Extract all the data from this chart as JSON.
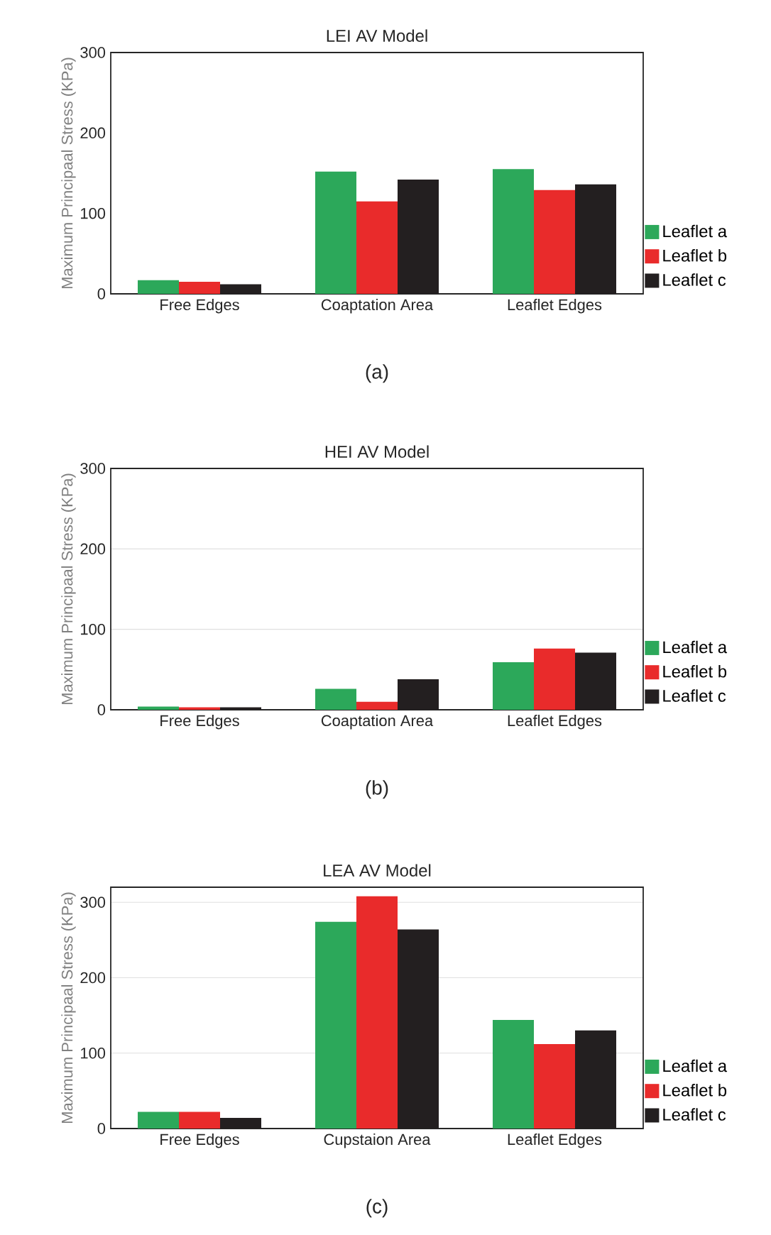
{
  "chart_data": [
    {
      "type": "bar",
      "title": "LEI AV Model",
      "ylabel": "Maximum Principaal Stress (KPa)",
      "categories": [
        "Free Edges",
        "Coaptation Area",
        "Leaflet Edges"
      ],
      "series": [
        {
          "name": "Leaflet a",
          "color": "#2ca85a",
          "values": [
            17,
            152,
            155
          ]
        },
        {
          "name": "Leaflet b",
          "color": "#e92b2b",
          "values": [
            15,
            115,
            129
          ]
        },
        {
          "name": "Leaflet c",
          "color": "#231f20",
          "values": [
            12,
            142,
            136
          ]
        }
      ],
      "ylim": [
        0,
        300
      ],
      "yticks": [
        0,
        100,
        200,
        300
      ],
      "legend": "right",
      "annotations": [
        "(a)"
      ]
    },
    {
      "type": "bar",
      "title": "HEI AV Model",
      "ylabel": "Maximum Principaal Stress (KPa)",
      "categories": [
        "Free Edges",
        "Coaptation Area",
        "Leaflet Edges"
      ],
      "series": [
        {
          "name": "Leaflet a",
          "color": "#2ca85a",
          "values": [
            4,
            26,
            59
          ]
        },
        {
          "name": "Leaflet b",
          "color": "#e92b2b",
          "values": [
            3,
            10,
            76
          ]
        },
        {
          "name": "Leaflet c",
          "color": "#231f20",
          "values": [
            3,
            38,
            71
          ]
        }
      ],
      "ylim": [
        0,
        300
      ],
      "yticks": [
        0,
        100,
        200,
        300
      ],
      "grid": "y",
      "legend": "right",
      "annotations": [
        "(b)"
      ]
    },
    {
      "type": "bar",
      "title": "LEA AV Model",
      "ylabel": "Maximum Principaal Stress (KPa)",
      "categories": [
        "Free Edges",
        "Cupstaion Area",
        "Leaflet Edges"
      ],
      "series": [
        {
          "name": "Leaflet a",
          "color": "#2ca85a",
          "values": [
            22,
            274,
            144
          ]
        },
        {
          "name": "Leaflet b",
          "color": "#e92b2b",
          "values": [
            22,
            308,
            112
          ]
        },
        {
          "name": "Leaflet c",
          "color": "#231f20",
          "values": [
            14,
            264,
            130
          ]
        }
      ],
      "ylim": [
        0,
        320
      ],
      "yticks": [
        0,
        100,
        200,
        300
      ],
      "grid": "y",
      "legend": "right",
      "annotations": [
        "(c)"
      ]
    }
  ]
}
